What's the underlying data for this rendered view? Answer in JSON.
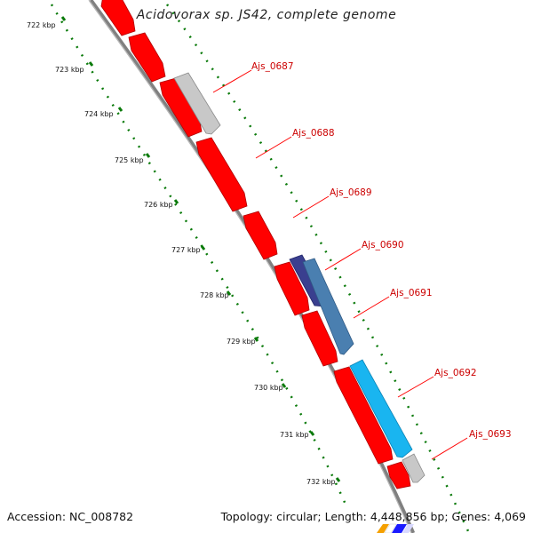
{
  "title": "Acidovorax sp. JS42, complete genome",
  "footer": {
    "accession": "Accession: NC_008782",
    "topology": "Topology: circular; Length: 4,448,856 bp; Genes: 4,069"
  },
  "ruler": {
    "units": "kbp",
    "ticks": [
      "722 kbp",
      "723 kbp",
      "724 kbp",
      "725 kbp",
      "726 kbp",
      "727 kbp",
      "728 kbp",
      "729 kbp",
      "730 kbp",
      "731 kbp",
      "732 kbp"
    ]
  },
  "genes": [
    {
      "name": "Ajs_0687",
      "color": "#c8c8c8"
    },
    {
      "name": "Ajs_0688",
      "color": "#ff0000"
    },
    {
      "name": "Ajs_0689",
      "color": "#ff0000"
    },
    {
      "name": "Ajs_0690",
      "color": "#3a3f8f"
    },
    {
      "name": "Ajs_0691",
      "color": "#4a7fb0"
    },
    {
      "name": "Ajs_0692",
      "color": "#19b5f0"
    },
    {
      "name": "Ajs_0693",
      "color": "#c8c8c8"
    }
  ],
  "colors": {
    "forward_strand": "#ff0000",
    "backbone": "#808080",
    "ruler_tick": "#0a7a0a",
    "label_line": "#ff0000"
  }
}
